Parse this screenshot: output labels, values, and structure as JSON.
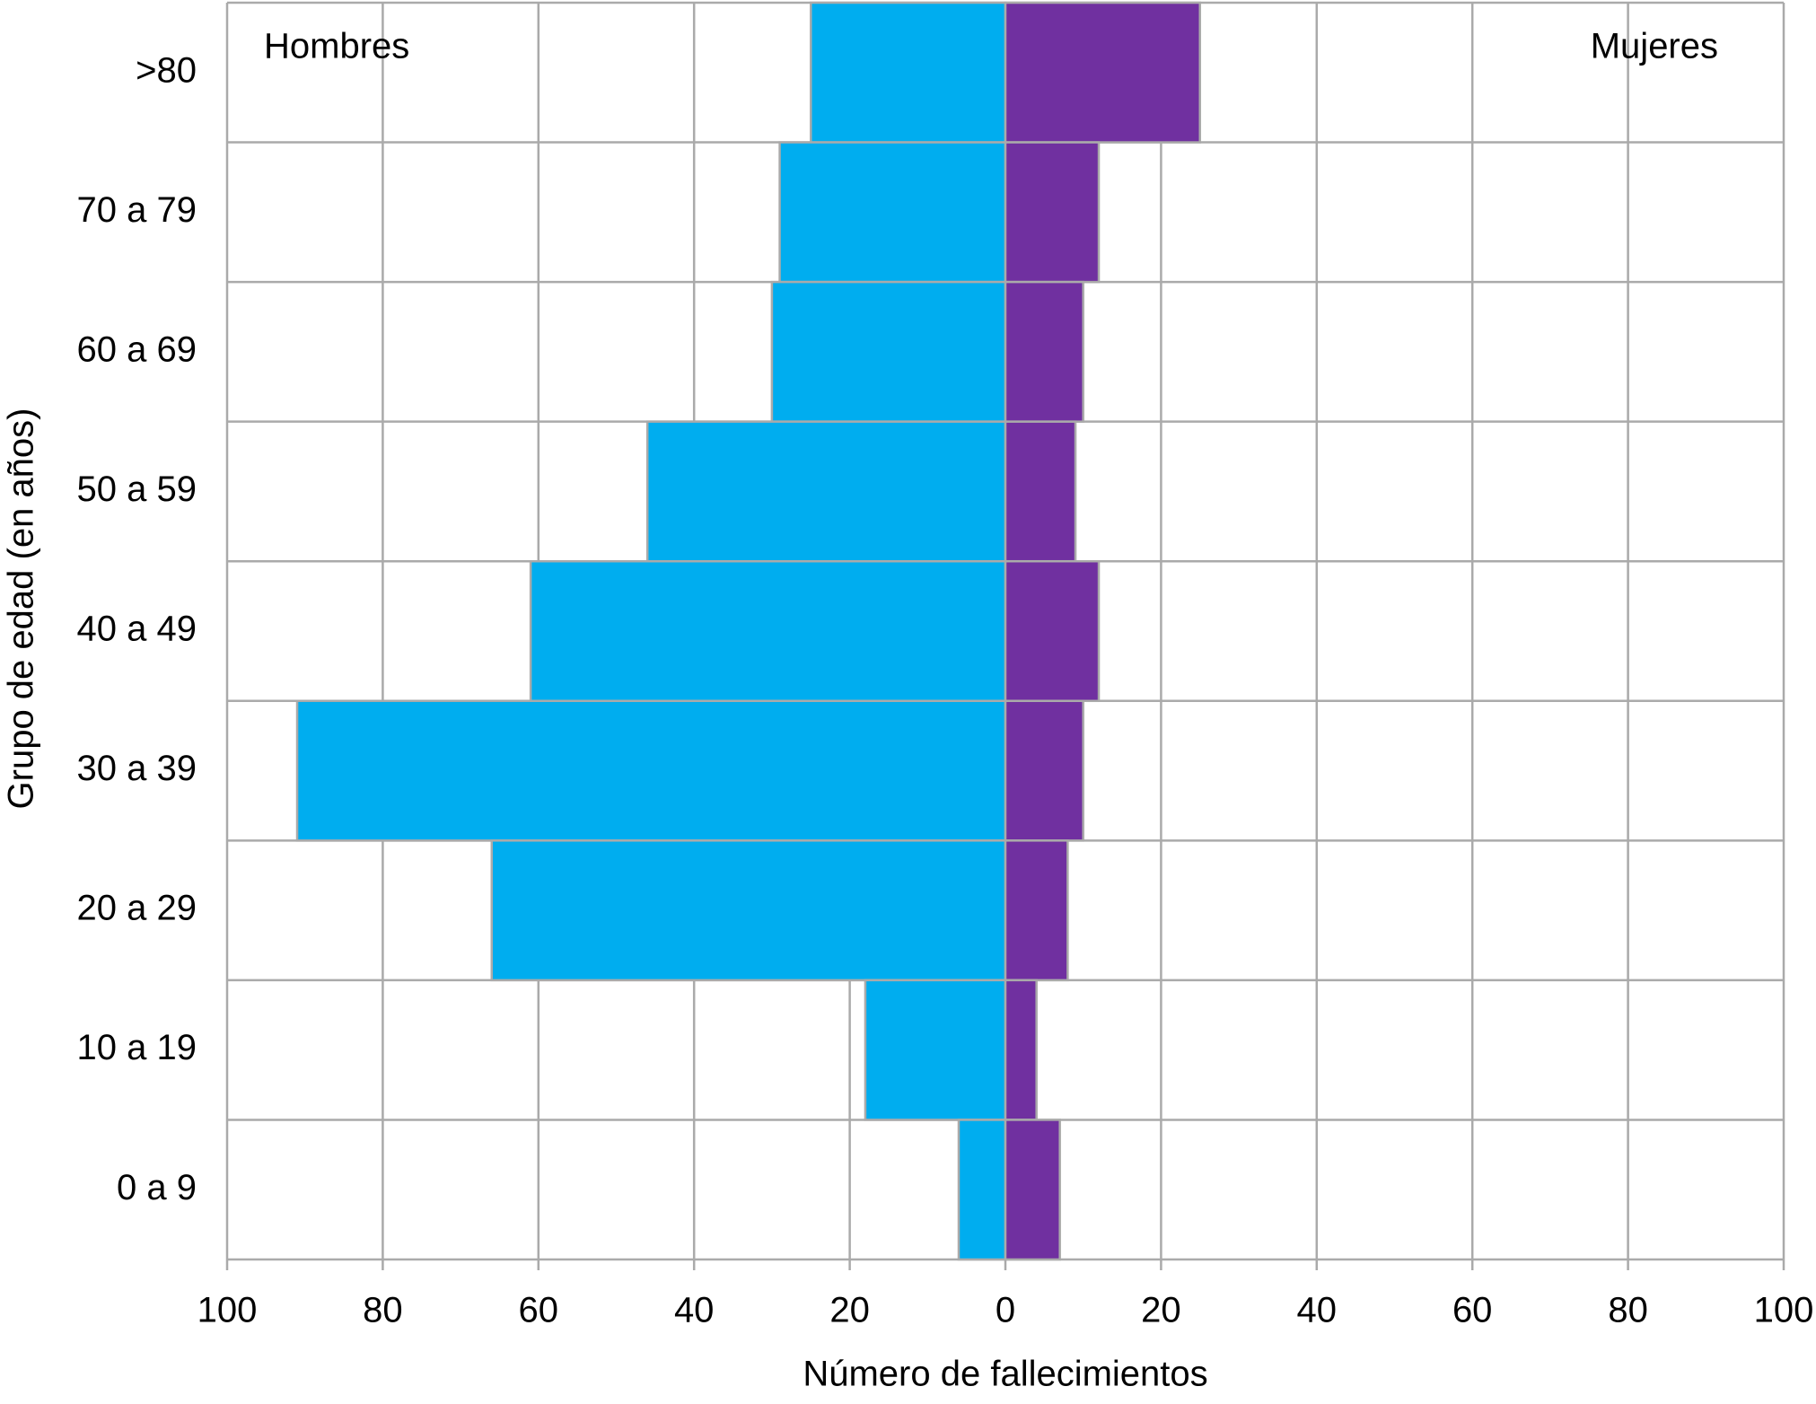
{
  "chart_data": {
    "type": "pyramid",
    "xlabel": "Número de fallecimientos",
    "ylabel": "Grupo de edad (en años)",
    "categories": [
      ">80",
      "70 a 79",
      "60 a 69",
      "50 a 59",
      "40 a 49",
      "30 a 39",
      "20 a 29",
      "10 a 19",
      "0 a 9"
    ],
    "series": [
      {
        "name": "Hombres",
        "color": "#00adef",
        "values": [
          -25,
          -29,
          -30,
          -46,
          -61,
          -91,
          -66,
          -18,
          -6
        ]
      },
      {
        "name": "Mujeres",
        "color": "#7030a0",
        "values": [
          25,
          12,
          10,
          9,
          12,
          10,
          8,
          4,
          7
        ]
      }
    ],
    "xlim": [
      -100,
      100
    ],
    "xticks": [
      {
        "value": -100,
        "label": "100"
      },
      {
        "value": -80,
        "label": "80"
      },
      {
        "value": -60,
        "label": "60"
      },
      {
        "value": -40,
        "label": "40"
      },
      {
        "value": -20,
        "label": "20"
      },
      0,
      20,
      40,
      60,
      80,
      100
    ],
    "grid": true
  }
}
